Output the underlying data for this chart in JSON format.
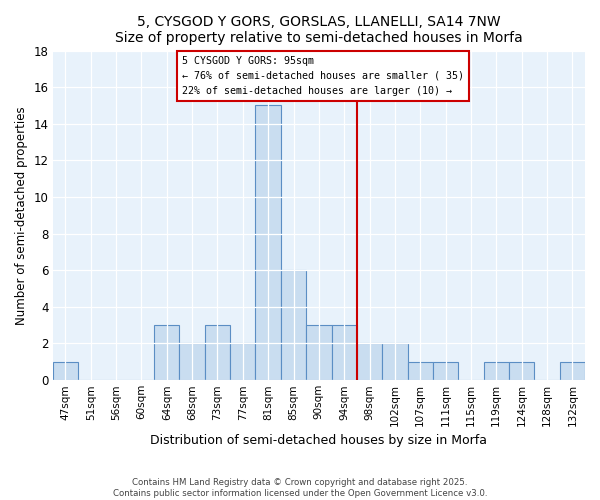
{
  "title": "5, CYSGOD Y GORS, GORSLAS, LLANELLI, SA14 7NW",
  "subtitle": "Size of property relative to semi-detached houses in Morfa",
  "xlabel": "Distribution of semi-detached houses by size in Morfa",
  "ylabel": "Number of semi-detached properties",
  "bin_labels": [
    "47sqm",
    "51sqm",
    "56sqm",
    "60sqm",
    "64sqm",
    "68sqm",
    "73sqm",
    "77sqm",
    "81sqm",
    "85sqm",
    "90sqm",
    "94sqm",
    "98sqm",
    "102sqm",
    "107sqm",
    "111sqm",
    "115sqm",
    "119sqm",
    "124sqm",
    "128sqm",
    "132sqm"
  ],
  "bar_values": [
    1,
    0,
    0,
    0,
    3,
    2,
    3,
    2,
    15,
    6,
    3,
    3,
    2,
    2,
    1,
    1,
    0,
    1,
    1,
    0,
    1
  ],
  "bar_color": "#c9ddf0",
  "bar_edge_color": "#5b8ec4",
  "vline_color": "#cc0000",
  "annotation_title": "5 CYSGOD Y GORS: 95sqm",
  "annotation_line1": "← 76% of semi-detached houses are smaller ( 35)",
  "annotation_line2": "22% of semi-detached houses are larger (10) →",
  "ylim": [
    0,
    18
  ],
  "yticks": [
    0,
    2,
    4,
    6,
    8,
    10,
    12,
    14,
    16,
    18
  ],
  "footer1": "Contains HM Land Registry data © Crown copyright and database right 2025.",
  "footer2": "Contains public sector information licensed under the Open Government Licence v3.0.",
  "bg_color": "#ffffff",
  "plot_bg_color": "#e8f2fb",
  "grid_color": "#c8ddf0"
}
